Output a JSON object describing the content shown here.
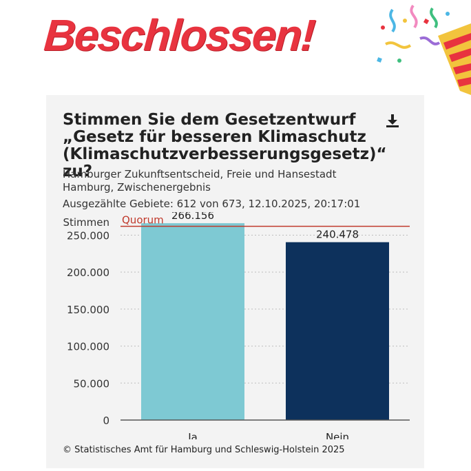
{
  "headline": "Beschlossen!",
  "icons": {
    "decoration": "party-popper-icon",
    "download": "download-icon"
  },
  "colors": {
    "headline": "#e8333f",
    "bar_ja": "#7ec9d3",
    "bar_nein": "#0d315c",
    "quorum": "#c0392b"
  },
  "card": {
    "title": "Stimmen Sie dem Gesetzentwurf „Gesetz für besseren Klimaschutz (Klimaschutzverbesserungsgesetz)“ zu?",
    "subtitle": "Hamburger Zukunftsentscheid, Freie und Hansestadt Hamburg, Zwischenergebnis",
    "meta": "Ausgezählte Gebiete: 612 von 673, 12.10.2025, 20:17:01",
    "source": "© Statistisches Amt für Hamburg und Schleswig-Holstein 2025"
  },
  "chart_data": {
    "type": "bar",
    "categories": [
      "Ja",
      "Nein"
    ],
    "values": [
      266156,
      240478
    ],
    "value_labels": [
      "266.156",
      "240.478"
    ],
    "ylabel": "Stimmen",
    "ylim": [
      0,
      270000
    ],
    "yticks": [
      0,
      50000,
      100000,
      150000,
      200000,
      250000
    ],
    "ytick_labels": [
      "0",
      "50.000",
      "100.000",
      "150.000",
      "200.000",
      "250.000"
    ],
    "grid": true,
    "reference_line": {
      "label": "Quorum",
      "value": 262000
    }
  }
}
